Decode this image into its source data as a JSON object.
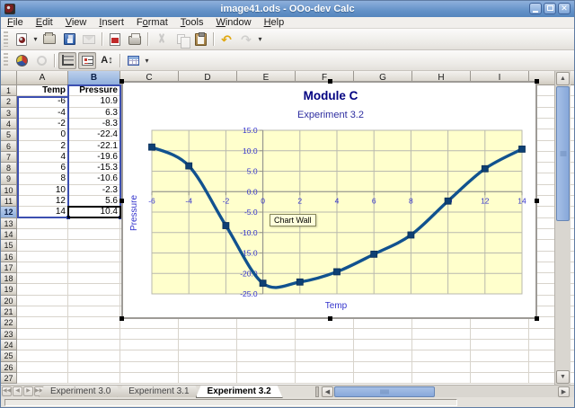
{
  "window": {
    "title": "image41.ods - OOo-dev Calc",
    "controls": [
      {
        "name": "minimize-button",
        "glyph": "minimize"
      },
      {
        "name": "maximize-button",
        "glyph": "maximize"
      },
      {
        "name": "close-button",
        "glyph": "close"
      }
    ]
  },
  "menu": {
    "items": [
      {
        "label": "File",
        "accel": 0
      },
      {
        "label": "Edit",
        "accel": 0
      },
      {
        "label": "View",
        "accel": 0
      },
      {
        "label": "Insert",
        "accel": 0
      },
      {
        "label": "Format",
        "accel": 1
      },
      {
        "label": "Tools",
        "accel": 0
      },
      {
        "label": "Window",
        "accel": 0
      },
      {
        "label": "Help",
        "accel": 0
      }
    ]
  },
  "toolbar_standard": {
    "items": [
      {
        "name": "new-document-icon",
        "type": "new"
      },
      {
        "name": "new-dropdown-icon",
        "type": "caret"
      },
      {
        "name": "open-icon",
        "type": "open"
      },
      {
        "name": "save-icon",
        "type": "save"
      },
      {
        "name": "email-icon",
        "type": "email",
        "disabled": true
      },
      {
        "type": "sep"
      },
      {
        "name": "export-pdf-icon",
        "type": "pdf"
      },
      {
        "name": "print-icon",
        "type": "print"
      },
      {
        "type": "sep"
      },
      {
        "name": "cut-icon",
        "type": "cut",
        "disabled": true
      },
      {
        "name": "copy-icon",
        "type": "copy",
        "disabled": true
      },
      {
        "name": "paste-icon",
        "type": "paste"
      },
      {
        "type": "sep"
      },
      {
        "name": "undo-icon",
        "type": "undo",
        "glyph": "↶"
      },
      {
        "name": "redo-icon",
        "type": "redo",
        "glyph": "↷",
        "disabled": true
      },
      {
        "name": "toolbar-overflow-icon",
        "type": "overflow",
        "glyph": "▾"
      }
    ]
  },
  "toolbar_chart": {
    "items": [
      {
        "name": "chart-type-icon",
        "type": "pie"
      },
      {
        "name": "data-in-rows-icon",
        "type": "ring",
        "disabled": true
      },
      {
        "type": "sep"
      },
      {
        "name": "horizontal-grids-icon",
        "type": "hgrid",
        "pressed": true
      },
      {
        "name": "legend-toggle-icon",
        "type": "legend",
        "pressed": true
      },
      {
        "name": "scale-text-icon",
        "type": "scaletext",
        "glyph": "A↕"
      },
      {
        "type": "sep"
      },
      {
        "name": "chart-data-table-icon",
        "type": "datatable"
      },
      {
        "name": "toolbar-overflow-icon",
        "type": "overflow",
        "glyph": "▾"
      }
    ]
  },
  "spreadsheet": {
    "column_headers": [
      "A",
      "B",
      "C",
      "D",
      "E",
      "F",
      "G",
      "H",
      "I",
      "J"
    ],
    "visible_rows": 27,
    "selected_column": "B",
    "selected_row": 12,
    "active_cell": "B12",
    "header_row": {
      "a": "Temp",
      "b": "Pressure"
    },
    "col_a": [
      "-6",
      "-4",
      "-2",
      "0",
      "2",
      "4",
      "6",
      "8",
      "10",
      "12",
      "14"
    ],
    "col_b": [
      "10.9",
      "6.3",
      "-8.3",
      "-22.4",
      "-22.1",
      "-19.6",
      "-15.3",
      "-10.6",
      "-2.3",
      "5.6",
      "10.4"
    ]
  },
  "chart_data": {
    "type": "line",
    "smooth": true,
    "title": "Module C",
    "subtitle": "Experiment 3.2",
    "xlabel": "Temp",
    "ylabel": "Pressure",
    "x": [
      -6,
      -4,
      -2,
      0,
      2,
      4,
      6,
      8,
      10,
      12,
      14
    ],
    "series": [
      {
        "name": "Pressure",
        "values": [
          10.9,
          6.3,
          -8.3,
          -22.4,
          -22.1,
          -19.6,
          -15.3,
          -10.6,
          -2.3,
          5.6,
          10.4
        ]
      }
    ],
    "xlim": [
      -6,
      14
    ],
    "ylim": [
      -25,
      15
    ],
    "x_tick_step": 2,
    "y_tick_step": 5,
    "y_tick_labels": [
      "15.0",
      "10.0",
      "5.0",
      "0.0",
      "-5.0",
      "-10.0",
      "-15.0",
      "-20.0",
      "-25.0"
    ],
    "x_tick_labels": [
      "-6",
      "-4",
      "-2",
      "0",
      "2",
      "4",
      "6",
      "8",
      "10",
      "12",
      "14"
    ],
    "grid": true,
    "legend": "none",
    "colors": {
      "series": "#11528f",
      "marker": "#0e4074",
      "plot_bg": "#ffffcc",
      "gridline": "#b9b9ae",
      "axis_label": "#3333cc",
      "title": "#000080",
      "subtitle": "#2e2ea0"
    }
  },
  "tooltip": {
    "text": "Chart Wall"
  },
  "sheet_tabs": {
    "tabs": [
      "Experiment 3.0",
      "Experiment 3.1",
      "Experiment 3.2"
    ],
    "active": "Experiment 3.2"
  },
  "status_bar": {
    "text": ""
  }
}
